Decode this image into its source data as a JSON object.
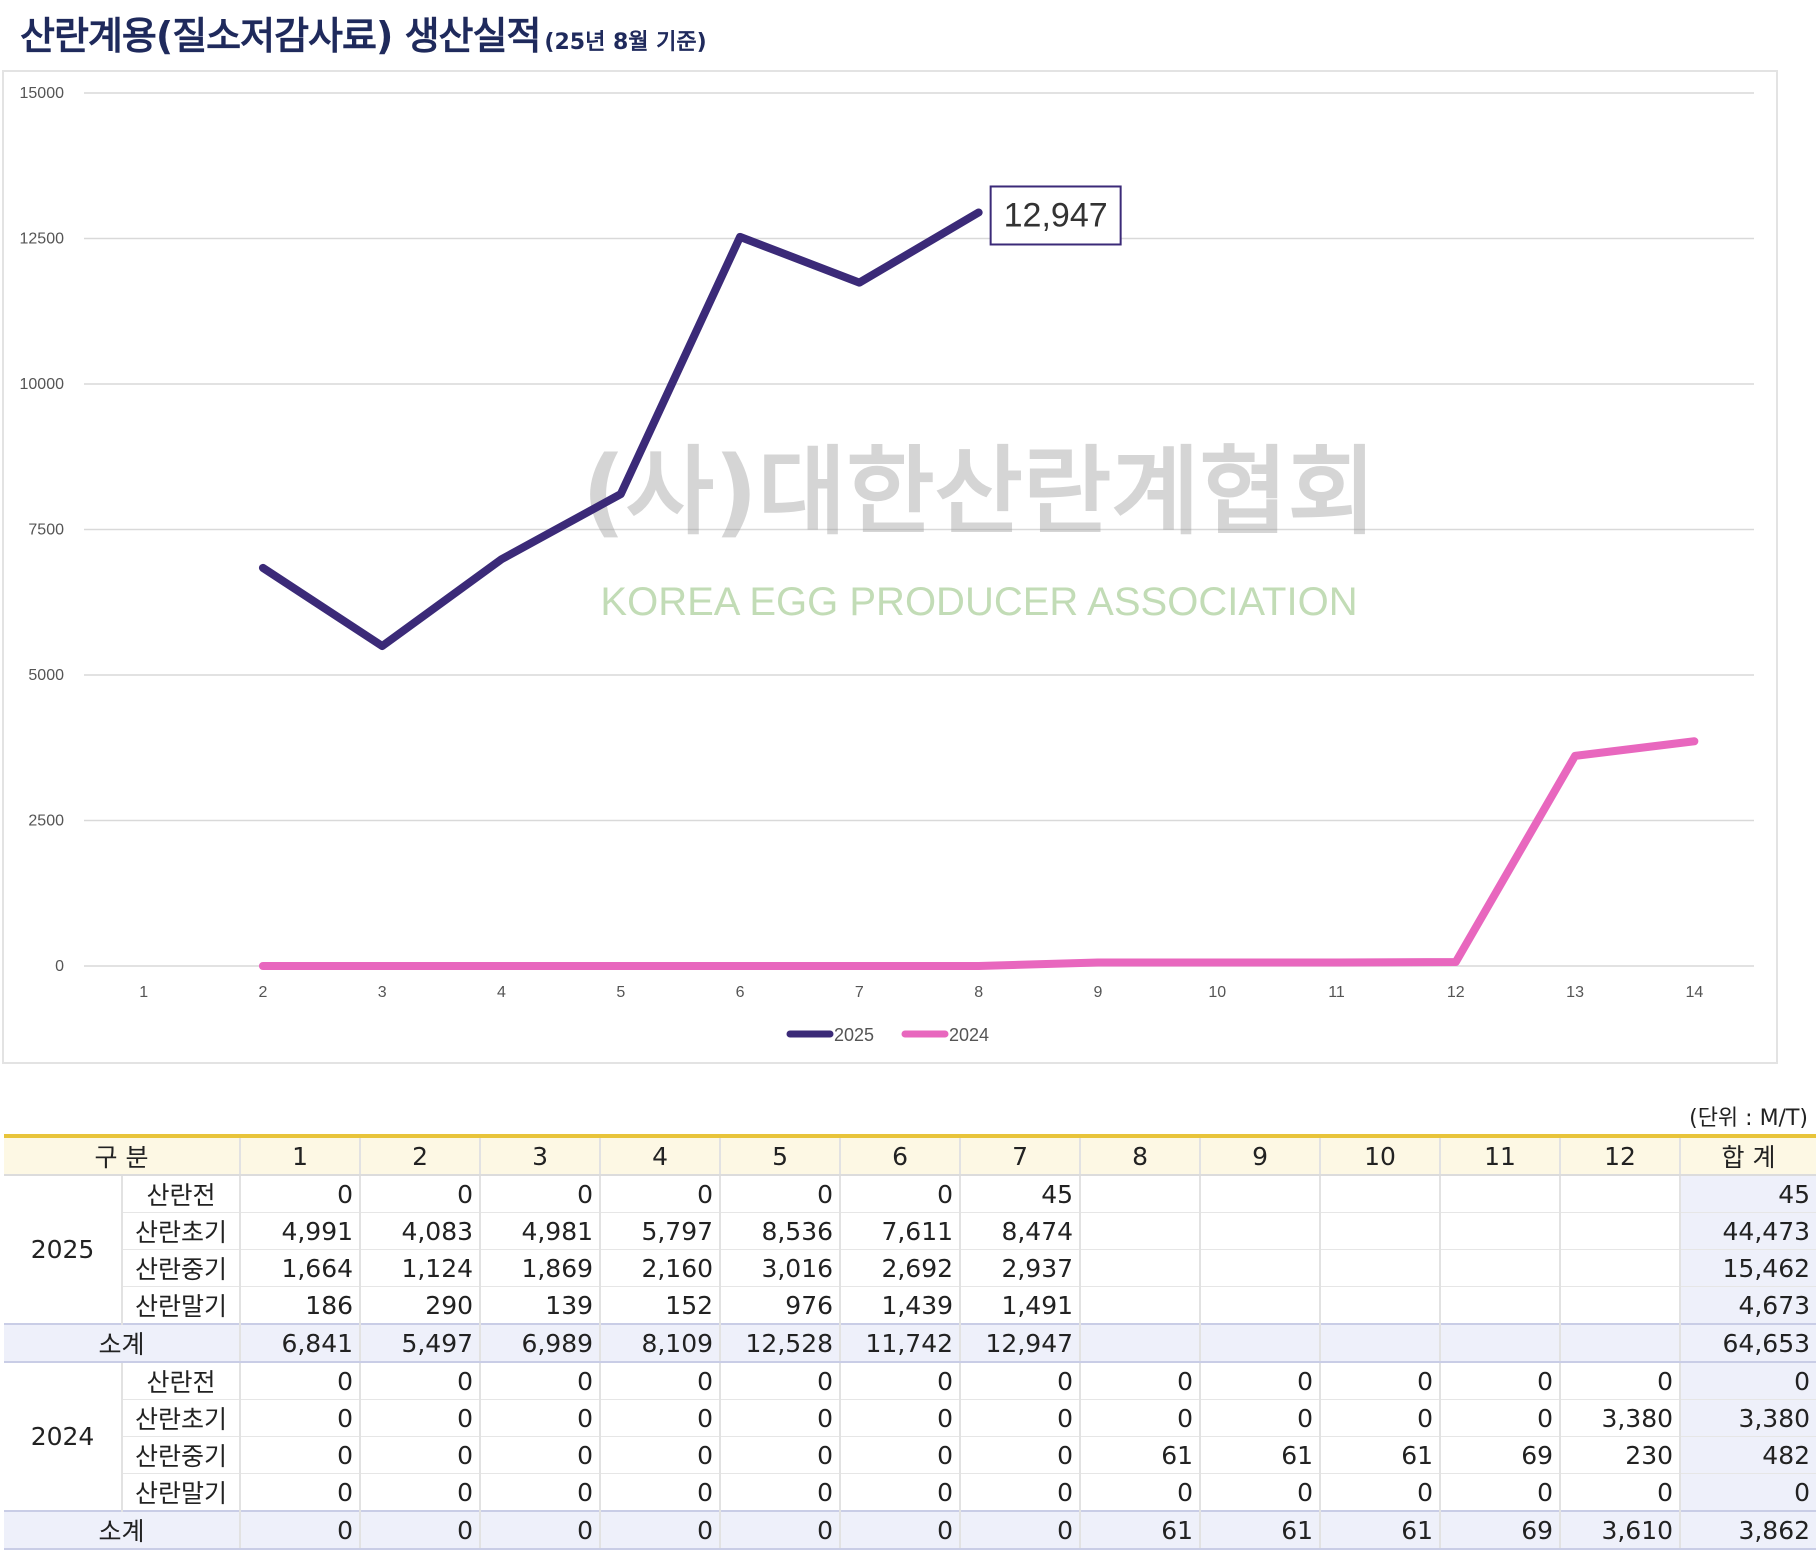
{
  "title": {
    "main": "산란계용(질소저감사료) 생산실적",
    "sub": "(25년 8월 기준)"
  },
  "watermark": {
    "korean": "(사)대한산란계협회",
    "english": "KOREA EGG PRODUCER ASSOCIATION"
  },
  "chart_data": {
    "type": "line",
    "title": "",
    "xlabel": "",
    "ylabel": "",
    "x": [
      1,
      2,
      3,
      4,
      5,
      6,
      7,
      8,
      9,
      10,
      11,
      12,
      13,
      14
    ],
    "ylim": [
      0,
      15000
    ],
    "yticks": [
      0,
      2500,
      5000,
      7500,
      10000,
      12500,
      15000
    ],
    "grid": true,
    "legend_position": "bottom",
    "series": [
      {
        "name": "2025",
        "color": "#3b2a78",
        "points": [
          [
            2,
            6841
          ],
          [
            3,
            5497
          ],
          [
            4,
            6989
          ],
          [
            5,
            8109
          ],
          [
            6,
            12528
          ],
          [
            7,
            11742
          ],
          [
            8,
            12947
          ]
        ]
      },
      {
        "name": "2024",
        "color": "#e867be",
        "points": [
          [
            2,
            0
          ],
          [
            3,
            0
          ],
          [
            4,
            0
          ],
          [
            5,
            0
          ],
          [
            6,
            0
          ],
          [
            7,
            0
          ],
          [
            8,
            0
          ],
          [
            9,
            61
          ],
          [
            10,
            61
          ],
          [
            11,
            61
          ],
          [
            12,
            69
          ],
          [
            13,
            3610
          ],
          [
            14,
            3862
          ]
        ]
      }
    ],
    "annotations": [
      {
        "text": "12,947",
        "x": 8,
        "y": 12947
      }
    ]
  },
  "table": {
    "unit": "(단위 : M/T)",
    "headers": [
      "구 분",
      "1",
      "2",
      "3",
      "4",
      "5",
      "6",
      "7",
      "8",
      "9",
      "10",
      "11",
      "12",
      "합 계"
    ],
    "groups": [
      {
        "year": "2025",
        "rows": [
          {
            "category": "산란전",
            "values": [
              "0",
              "0",
              "0",
              "0",
              "0",
              "0",
              "45",
              "",
              "",
              "",
              "",
              ""
            ],
            "total": "45"
          },
          {
            "category": "산란초기",
            "values": [
              "4,991",
              "4,083",
              "4,981",
              "5,797",
              "8,536",
              "7,611",
              "8,474",
              "",
              "",
              "",
              "",
              ""
            ],
            "total": "44,473"
          },
          {
            "category": "산란중기",
            "values": [
              "1,664",
              "1,124",
              "1,869",
              "2,160",
              "3,016",
              "2,692",
              "2,937",
              "",
              "",
              "",
              "",
              ""
            ],
            "total": "15,462"
          },
          {
            "category": "산란말기",
            "values": [
              "186",
              "290",
              "139",
              "152",
              "976",
              "1,439",
              "1,491",
              "",
              "",
              "",
              "",
              ""
            ],
            "total": "4,673"
          }
        ],
        "subtotal": {
          "label": "소계",
          "values": [
            "6,841",
            "5,497",
            "6,989",
            "8,109",
            "12,528",
            "11,742",
            "12,947",
            "",
            "",
            "",
            "",
            ""
          ],
          "total": "64,653"
        }
      },
      {
        "year": "2024",
        "rows": [
          {
            "category": "산란전",
            "values": [
              "0",
              "0",
              "0",
              "0",
              "0",
              "0",
              "0",
              "0",
              "0",
              "0",
              "0",
              "0"
            ],
            "total": "0"
          },
          {
            "category": "산란초기",
            "values": [
              "0",
              "0",
              "0",
              "0",
              "0",
              "0",
              "0",
              "0",
              "0",
              "0",
              "0",
              "3,380"
            ],
            "total": "3,380"
          },
          {
            "category": "산란중기",
            "values": [
              "0",
              "0",
              "0",
              "0",
              "0",
              "0",
              "0",
              "61",
              "61",
              "61",
              "69",
              "230"
            ],
            "total": "482"
          },
          {
            "category": "산란말기",
            "values": [
              "0",
              "0",
              "0",
              "0",
              "0",
              "0",
              "0",
              "0",
              "0",
              "0",
              "0",
              "0"
            ],
            "total": "0"
          }
        ],
        "subtotal": {
          "label": "소계",
          "values": [
            "0",
            "0",
            "0",
            "0",
            "0",
            "0",
            "0",
            "61",
            "61",
            "61",
            "69",
            "3,610"
          ],
          "total": "3,862"
        }
      }
    ]
  }
}
